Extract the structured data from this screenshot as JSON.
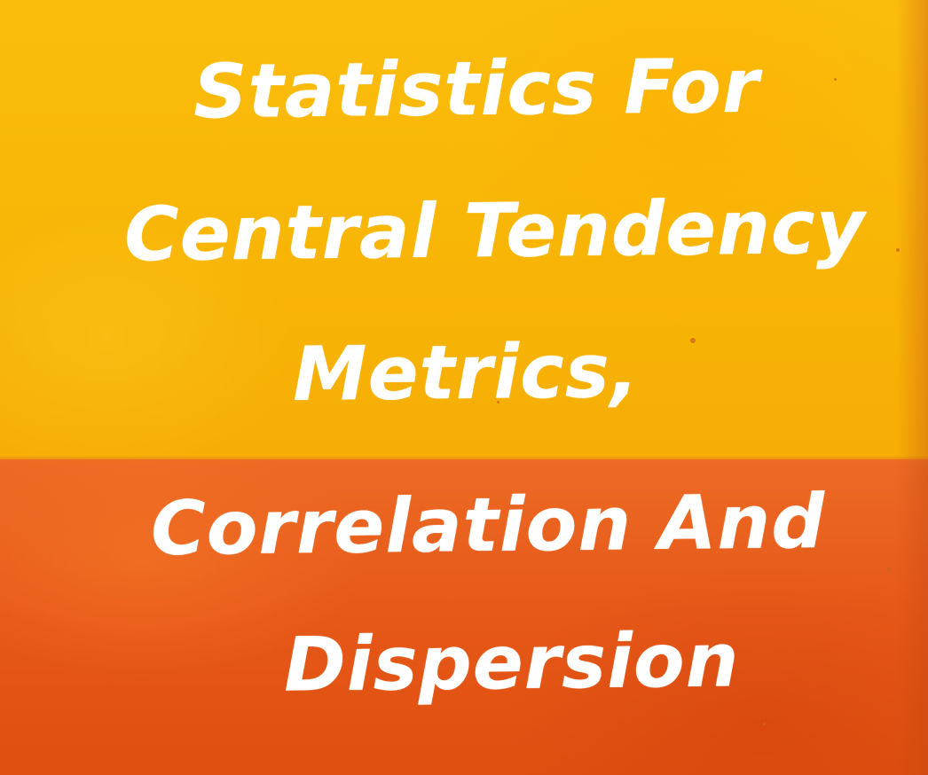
{
  "title": {
    "lines": [
      "Statistics For",
      "Central Tendency",
      "Metrics,",
      "Correlation And",
      "Dispersion"
    ]
  },
  "colors": {
    "top_band": "#f8b506",
    "bottom_band": "#e65818",
    "text": "#ffffff"
  }
}
